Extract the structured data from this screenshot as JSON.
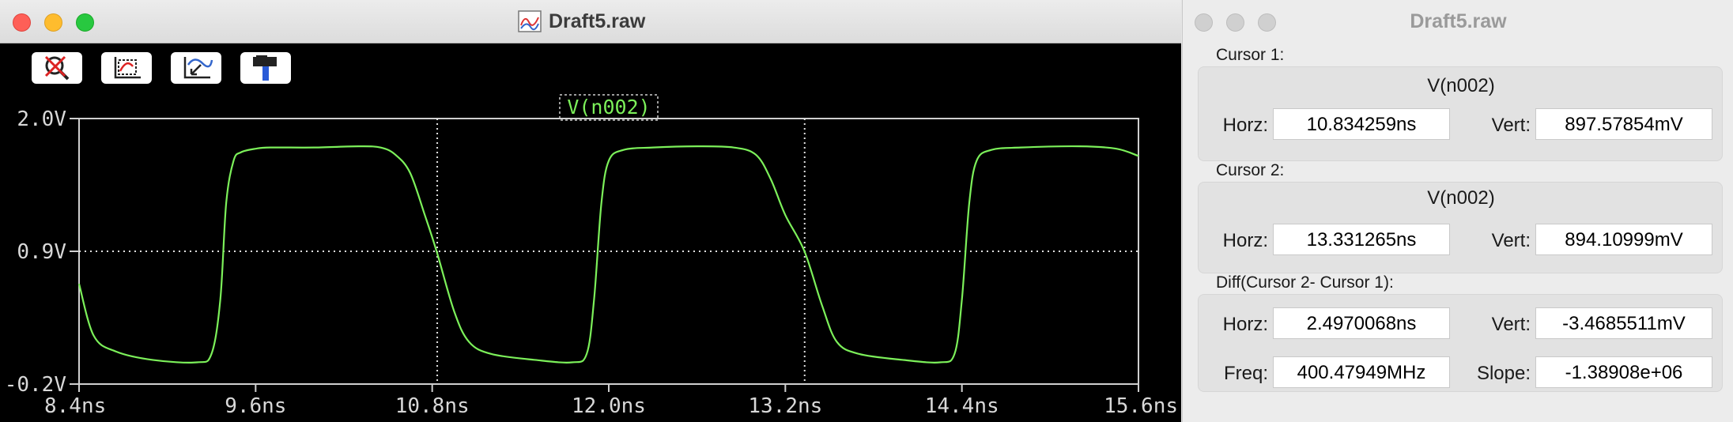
{
  "plot_window": {
    "title": "Draft5.raw",
    "toolbar": [
      {
        "name": "zoom-cancel-icon"
      },
      {
        "name": "autorange-icon"
      },
      {
        "name": "cursor-measure-icon"
      },
      {
        "name": "hammer-icon"
      }
    ]
  },
  "chart_data": {
    "type": "line",
    "trace_label": "V(n002)",
    "x_unit": "ns",
    "x_ticks": [
      "8.4ns",
      "9.6ns",
      "10.8ns",
      "12.0ns",
      "13.2ns",
      "14.4ns",
      "15.6ns"
    ],
    "y_ticks": [
      "2.0V",
      "0.9V",
      "-0.2V"
    ],
    "xlim": [
      8.4,
      15.6
    ],
    "ylim": [
      -0.2,
      2.0
    ],
    "grid": "dotted line at 0.9V only",
    "cursors_x": [
      10.834259,
      13.331265
    ],
    "series": [
      {
        "color": "#7cf05a",
        "x": [
          8.4,
          8.5,
          8.65,
          8.9,
          9.2,
          9.3,
          9.36,
          9.4,
          9.45,
          9.5,
          9.6,
          9.7,
          10.0,
          10.3,
          10.45,
          10.55,
          10.65,
          10.75,
          10.83,
          10.95,
          11.05,
          11.2,
          11.5,
          11.75,
          11.85,
          11.9,
          11.95,
          12.0,
          12.1,
          12.3,
          12.6,
          12.85,
          13.0,
          13.1,
          13.2,
          13.33,
          13.45,
          13.55,
          13.7,
          14.0,
          14.25,
          14.35,
          14.4,
          14.45,
          14.5,
          14.6,
          14.8,
          15.2,
          15.45,
          15.6
        ],
        "y": [
          0.63,
          0.2,
          0.07,
          0.0,
          -0.02,
          0.05,
          0.5,
          1.3,
          1.65,
          1.72,
          1.75,
          1.76,
          1.76,
          1.77,
          1.76,
          1.7,
          1.55,
          1.2,
          0.9,
          0.4,
          0.15,
          0.05,
          0.0,
          -0.02,
          0.05,
          0.5,
          1.3,
          1.65,
          1.74,
          1.76,
          1.77,
          1.76,
          1.7,
          1.5,
          1.2,
          0.9,
          0.45,
          0.15,
          0.05,
          0.0,
          -0.02,
          0.05,
          0.5,
          1.3,
          1.65,
          1.74,
          1.76,
          1.77,
          1.75,
          1.69
        ]
      }
    ]
  },
  "cursor_window": {
    "title": "Draft5.raw",
    "cursor1": {
      "label": "Cursor 1:",
      "trace": "V(n002)",
      "horz_label": "Horz:",
      "horz": "10.834259ns",
      "vert_label": "Vert:",
      "vert": "897.57854mV"
    },
    "cursor2": {
      "label": "Cursor 2:",
      "trace": "V(n002)",
      "horz_label": "Horz:",
      "horz": "13.331265ns",
      "vert_label": "Vert:",
      "vert": "894.10999mV"
    },
    "diff": {
      "label": "Diff(Cursor 2- Cursor 1):",
      "horz_label": "Horz:",
      "horz": "2.4970068ns",
      "vert_label": "Vert:",
      "vert": "-3.4685511mV",
      "freq_label": "Freq:",
      "freq": "400.47949MHz",
      "slope_label": "Slope:",
      "slope": "-1.38908e+06"
    }
  }
}
